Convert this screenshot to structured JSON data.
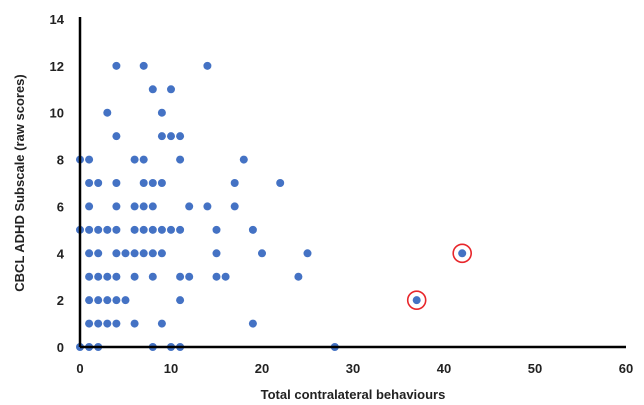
{
  "chart_data": {
    "type": "scatter",
    "title": "",
    "xlabel": "Total contralateral behaviours",
    "ylabel": "CBCL ADHD Subscale (raw scores)",
    "xlim": [
      0,
      60
    ],
    "ylim": [
      0,
      14
    ],
    "xticks": [
      0,
      10,
      20,
      30,
      40,
      50,
      60
    ],
    "yticks": [
      0,
      2,
      4,
      6,
      8,
      10,
      12,
      14
    ],
    "grid": false,
    "legend": "none",
    "colors": {
      "point": "#4472C4",
      "highlight_ring": "#E8262B",
      "axis": "#000000"
    },
    "points": [
      {
        "x": 0,
        "y": 8
      },
      {
        "x": 0,
        "y": 5
      },
      {
        "x": 0,
        "y": 0
      },
      {
        "x": 1,
        "y": 8
      },
      {
        "x": 1,
        "y": 7
      },
      {
        "x": 1,
        "y": 6
      },
      {
        "x": 1,
        "y": 5
      },
      {
        "x": 1,
        "y": 4
      },
      {
        "x": 1,
        "y": 3
      },
      {
        "x": 1,
        "y": 2
      },
      {
        "x": 1,
        "y": 1
      },
      {
        "x": 1,
        "y": 0
      },
      {
        "x": 2,
        "y": 7
      },
      {
        "x": 2,
        "y": 5
      },
      {
        "x": 2,
        "y": 4
      },
      {
        "x": 2,
        "y": 3
      },
      {
        "x": 2,
        "y": 2
      },
      {
        "x": 2,
        "y": 1
      },
      {
        "x": 2,
        "y": 0
      },
      {
        "x": 3,
        "y": 10
      },
      {
        "x": 3,
        "y": 5
      },
      {
        "x": 3,
        "y": 3
      },
      {
        "x": 3,
        "y": 2
      },
      {
        "x": 3,
        "y": 1
      },
      {
        "x": 4,
        "y": 12
      },
      {
        "x": 4,
        "y": 9
      },
      {
        "x": 4,
        "y": 7
      },
      {
        "x": 4,
        "y": 6
      },
      {
        "x": 4,
        "y": 5
      },
      {
        "x": 4,
        "y": 4
      },
      {
        "x": 4,
        "y": 3
      },
      {
        "x": 4,
        "y": 2
      },
      {
        "x": 4,
        "y": 1
      },
      {
        "x": 5,
        "y": 4
      },
      {
        "x": 5,
        "y": 2
      },
      {
        "x": 6,
        "y": 8
      },
      {
        "x": 6,
        "y": 6
      },
      {
        "x": 6,
        "y": 5
      },
      {
        "x": 6,
        "y": 4
      },
      {
        "x": 6,
        "y": 3
      },
      {
        "x": 6,
        "y": 1
      },
      {
        "x": 7,
        "y": 12
      },
      {
        "x": 7,
        "y": 8
      },
      {
        "x": 7,
        "y": 7
      },
      {
        "x": 7,
        "y": 6
      },
      {
        "x": 7,
        "y": 5
      },
      {
        "x": 7,
        "y": 4
      },
      {
        "x": 8,
        "y": 11
      },
      {
        "x": 8,
        "y": 7
      },
      {
        "x": 8,
        "y": 6
      },
      {
        "x": 8,
        "y": 5
      },
      {
        "x": 8,
        "y": 4
      },
      {
        "x": 8,
        "y": 3
      },
      {
        "x": 8,
        "y": 0
      },
      {
        "x": 9,
        "y": 10
      },
      {
        "x": 9,
        "y": 9
      },
      {
        "x": 9,
        "y": 7
      },
      {
        "x": 9,
        "y": 5
      },
      {
        "x": 9,
        "y": 4
      },
      {
        "x": 9,
        "y": 1
      },
      {
        "x": 10,
        "y": 11
      },
      {
        "x": 10,
        "y": 9
      },
      {
        "x": 10,
        "y": 5
      },
      {
        "x": 10,
        "y": 0
      },
      {
        "x": 11,
        "y": 9
      },
      {
        "x": 11,
        "y": 8
      },
      {
        "x": 11,
        "y": 5
      },
      {
        "x": 11,
        "y": 3
      },
      {
        "x": 11,
        "y": 2
      },
      {
        "x": 11,
        "y": 0
      },
      {
        "x": 12,
        "y": 6
      },
      {
        "x": 12,
        "y": 3
      },
      {
        "x": 14,
        "y": 12
      },
      {
        "x": 14,
        "y": 6
      },
      {
        "x": 15,
        "y": 5
      },
      {
        "x": 15,
        "y": 4
      },
      {
        "x": 15,
        "y": 3
      },
      {
        "x": 16,
        "y": 3
      },
      {
        "x": 17,
        "y": 7
      },
      {
        "x": 17,
        "y": 6
      },
      {
        "x": 18,
        "y": 8
      },
      {
        "x": 19,
        "y": 5
      },
      {
        "x": 19,
        "y": 1
      },
      {
        "x": 20,
        "y": 4
      },
      {
        "x": 22,
        "y": 7
      },
      {
        "x": 24,
        "y": 3
      },
      {
        "x": 25,
        "y": 4
      },
      {
        "x": 28,
        "y": 0
      },
      {
        "x": 37,
        "y": 2,
        "highlighted": true
      },
      {
        "x": 42,
        "y": 4,
        "highlighted": true
      }
    ]
  }
}
